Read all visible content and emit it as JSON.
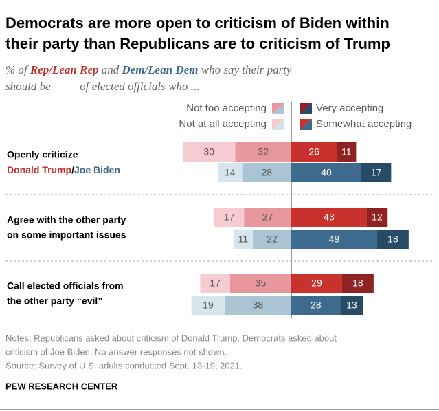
{
  "chart_data": {
    "type": "diverging_bar",
    "title": [
      "Democrats are more open to criticism of Biden within",
      "their party than Republicans are to criticism of Trump"
    ],
    "subtitle": {
      "prefix": "% of ",
      "joiner": " and ",
      "suffix": " who say their party",
      "line2": "should be ____ of elected officials who ..."
    },
    "parties": [
      {
        "name": "Rep/Lean Rep",
        "color": "#c0312b"
      },
      {
        "name": "Dem/Lean Dem",
        "color": "#3d6789"
      }
    ],
    "categories": [
      [
        "Openly criticize"
      ],
      [
        "Agree with the other party",
        "on some important issues"
      ],
      [
        "Call elected officials from",
        "the other party “evil”"
      ]
    ],
    "targets": [
      "Donald Trump",
      "/",
      "Joe Biden"
    ],
    "series": [
      {
        "name": "Not at all accepting",
        "colors": [
          "#f6cbd1",
          "#d6e4ec"
        ],
        "values": [
          [
            30,
            14
          ],
          [
            17,
            11
          ],
          [
            17,
            19
          ]
        ]
      },
      {
        "name": "Not too accepting",
        "colors": [
          "#e8979c",
          "#aac4d4"
        ],
        "values": [
          [
            32,
            28
          ],
          [
            27,
            22
          ],
          [
            35,
            38
          ]
        ]
      },
      {
        "name": "Somewhat accepting",
        "colors": [
          "#c8312c",
          "#3e6a8e"
        ],
        "values": [
          [
            26,
            40
          ],
          [
            43,
            49
          ],
          [
            29,
            28
          ]
        ]
      },
      {
        "name": "Very accepting",
        "colors": [
          "#8f2222",
          "#274a66"
        ],
        "values": [
          [
            11,
            17
          ],
          [
            12,
            18
          ],
          [
            18,
            13
          ]
        ]
      }
    ],
    "notes": [
      "Notes: Republicans asked about criticism of Donald Trump. Democrats asked about",
      "criticism of Joe Biden. No answer responses not shown.",
      "Source: Survey of U.S. adults conducted Sept. 13-19, 2021."
    ],
    "footer": "PEW RESEARCH CENTER"
  }
}
